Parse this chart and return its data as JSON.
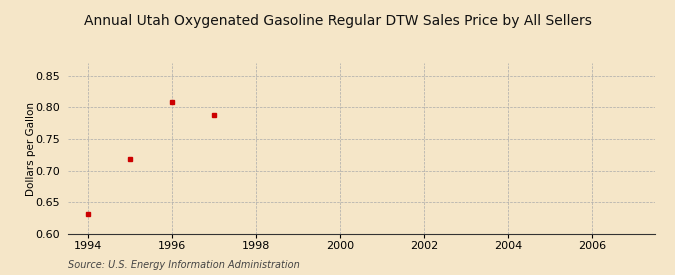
{
  "title": "Annual Utah Oxygenated Gasoline Regular DTW Sales Price by All Sellers",
  "ylabel": "Dollars per Gallon",
  "source": "Source: U.S. Energy Information Administration",
  "x_data": [
    1994,
    1995,
    1996,
    1997
  ],
  "y_data": [
    0.632,
    0.719,
    0.808,
    0.788
  ],
  "xlim": [
    1993.5,
    2007.5
  ],
  "ylim": [
    0.6,
    0.87
  ],
  "xticks": [
    1994,
    1996,
    1998,
    2000,
    2002,
    2004,
    2006
  ],
  "yticks": [
    0.6,
    0.65,
    0.7,
    0.75,
    0.8,
    0.85
  ],
  "marker_color": "#cc0000",
  "marker": "s",
  "marker_size": 3,
  "background_color": "#f5e6c8",
  "grid_color": "#aaaaaa",
  "title_fontsize": 10,
  "label_fontsize": 7.5,
  "tick_fontsize": 8,
  "source_fontsize": 7
}
